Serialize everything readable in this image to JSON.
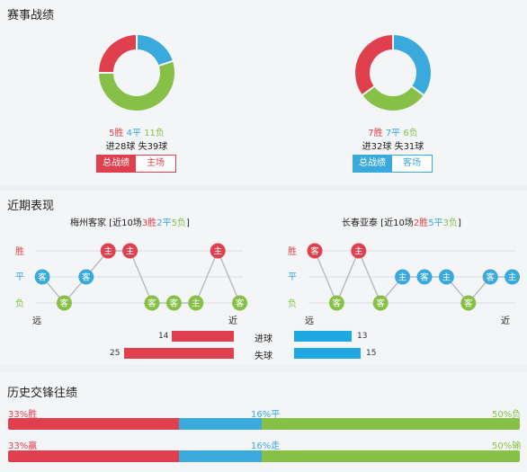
{
  "colors": {
    "win": "#e0404d",
    "draw": "#3aa9dc",
    "lose": "#86c047",
    "bar_team": "#e0404d",
    "bar_away": "#1ea7e1"
  },
  "record": {
    "title": "赛事战绩",
    "home": {
      "win": 5,
      "draw": 4,
      "lose": 11,
      "win_text": "5胜",
      "draw_text": "4平",
      "lose_text": "11负",
      "goals_text": "进28球 失39球",
      "tab_all": "总战绩",
      "tab_side": "主场"
    },
    "away": {
      "win": 7,
      "draw": 7,
      "lose": 6,
      "win_text": "7胜",
      "draw_text": "7平",
      "lose_text": "6负",
      "goals_text": "进32球 失31球",
      "tab_all": "总战绩",
      "tab_side": "客场"
    }
  },
  "recent": {
    "title": "近期表现",
    "row_labels": [
      "胜",
      "平",
      "负"
    ],
    "far": "远",
    "near": "近",
    "home": {
      "team": "梅州客家",
      "summary_prefix": " [近10场",
      "w_text": "3胜",
      "d_text": "2平",
      "l_text": "5负",
      "summary_suffix": "]",
      "results": [
        {
          "r": "draw",
          "v": "客"
        },
        {
          "r": "lose",
          "v": "客"
        },
        {
          "r": "draw",
          "v": "客"
        },
        {
          "r": "win",
          "v": "主"
        },
        {
          "r": "win",
          "v": "主"
        },
        {
          "r": "lose",
          "v": "客"
        },
        {
          "r": "lose",
          "v": "客"
        },
        {
          "r": "lose",
          "v": "主"
        },
        {
          "r": "win",
          "v": "主"
        },
        {
          "r": "lose",
          "v": "客"
        }
      ]
    },
    "away": {
      "team": "长春亚泰",
      "summary_prefix": " [近10场",
      "w_text": "2胜",
      "d_text": "5平",
      "l_text": "3负",
      "summary_suffix": "]",
      "results": [
        {
          "r": "win",
          "v": "客"
        },
        {
          "r": "lose",
          "v": "客"
        },
        {
          "r": "win",
          "v": "主"
        },
        {
          "r": "lose",
          "v": "客"
        },
        {
          "r": "draw",
          "v": "主"
        },
        {
          "r": "draw",
          "v": "客"
        },
        {
          "r": "draw",
          "v": "主"
        },
        {
          "r": "lose",
          "v": "客"
        },
        {
          "r": "draw",
          "v": "客"
        },
        {
          "r": "draw",
          "v": "主"
        }
      ]
    },
    "goals_for_label": "进球",
    "goals_against_label": "失球",
    "home_goals_for": 14,
    "home_goals_against": 25,
    "away_goals_for": 13,
    "away_goals_against": 15
  },
  "history": {
    "title": "历史交锋往绩",
    "row1": {
      "left": "33%胜",
      "mid": "16%平",
      "right": "50%负",
      "a": 33,
      "b": 16,
      "c": 50
    },
    "row2": {
      "left": "33%赢",
      "mid": "16%走",
      "right": "50%输",
      "a": 33,
      "b": 16,
      "c": 50
    }
  }
}
